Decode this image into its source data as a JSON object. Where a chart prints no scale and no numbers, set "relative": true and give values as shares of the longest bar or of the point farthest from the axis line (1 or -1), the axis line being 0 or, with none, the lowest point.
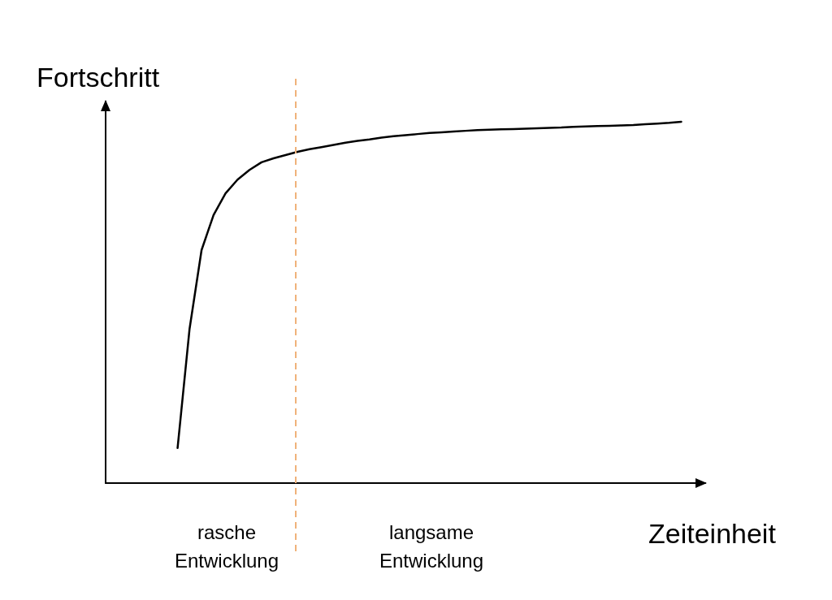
{
  "chart_data": {
    "type": "line",
    "relative": true,
    "ylabel": "Fortschritt",
    "xlabel": "Zeiteinheit",
    "categories": [
      null,
      null,
      null,
      null,
      null,
      null,
      null,
      null,
      null,
      null,
      null,
      null,
      null,
      null,
      null,
      null,
      null,
      null,
      null,
      null,
      null,
      null,
      null,
      null,
      null,
      null,
      null,
      null,
      null,
      null,
      null,
      null,
      null,
      null,
      null,
      null,
      null,
      null,
      null,
      null,
      null,
      null,
      null,
      null,
      null,
      null,
      null,
      null,
      null,
      null,
      null
    ],
    "series": [
      {
        "color": "#000000",
        "values": [
          null,
          null,
          null,
          null,
          null,
          null,
          0.097,
          0.427,
          0.645,
          0.742,
          0.802,
          0.84,
          0.867,
          0.888,
          0.899,
          0.908,
          0.917,
          0.924,
          0.93,
          0.936,
          0.942,
          0.947,
          0.951,
          0.956,
          0.96,
          0.963,
          0.966,
          0.969,
          0.971,
          0.973,
          0.975,
          0.977,
          0.978,
          0.979,
          0.98,
          0.981,
          0.982,
          0.983,
          0.984,
          0.986,
          0.987,
          0.988,
          0.989,
          0.99,
          0.991,
          0.993,
          0.995,
          0.997,
          1,
          null,
          null
        ]
      }
    ],
    "annotations": [
      "rasche\nEntwicklung",
      "langsame\nEntwicklung"
    ],
    "grid": false,
    "marker": "none",
    "line_style": "solid"
  }
}
